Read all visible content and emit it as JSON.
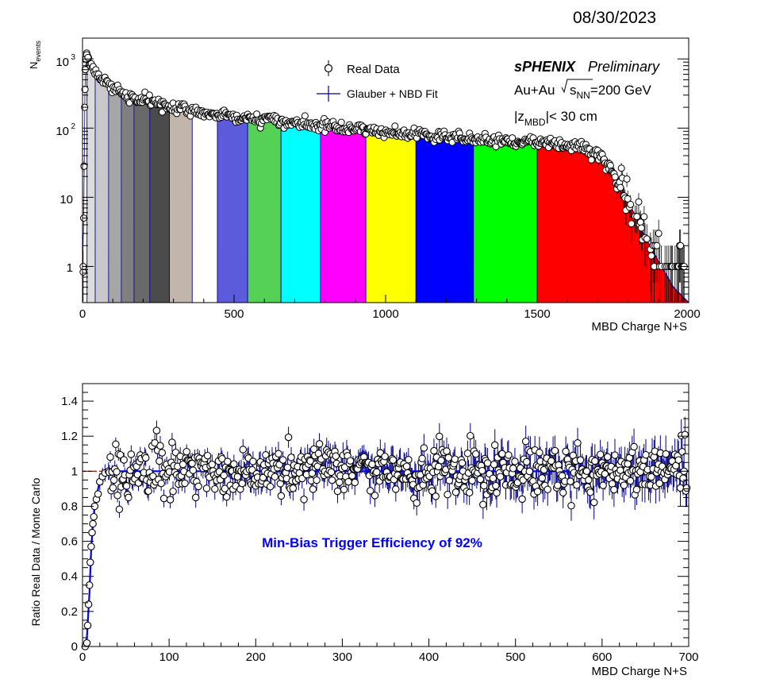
{
  "date": "08/30/2023",
  "charts": [
    {
      "type": "histogram",
      "xlabel": "MBD Charge N+S",
      "ylabel": "N",
      "ylabel_sub": "events",
      "x_ticks": [
        "0",
        "500",
        "1000",
        "1500",
        "2000"
      ],
      "y_ticks": [
        "1",
        "10",
        "10",
        "10"
      ],
      "y_tick_exponents": [
        "",
        "",
        "2",
        "3"
      ],
      "y_scale": "log",
      "xlim": [
        0,
        2000
      ],
      "ylim": [
        0.3,
        2000
      ],
      "legend": {
        "placement": "top-center",
        "entries": [
          "Real Data",
          "Glauber + NBD Fit"
        ]
      },
      "annotations": {
        "experiment": "sPHENIX",
        "status": "Preliminary",
        "system_prefix": "Au+Au",
        "energy_symbol": "s",
        "energy_subscript": "NN",
        "energy_value": "=200 GeV",
        "vertex_prefix": "|z",
        "vertex_subscript": "MBD",
        "vertex_suffix": "|< 30 cm"
      },
      "centrality_bins": [
        {
          "lo": 0,
          "hi": 15,
          "color": "#ffffff"
        },
        {
          "lo": 15,
          "hi": 42,
          "color": "#dcdcdc"
        },
        {
          "lo": 42,
          "hi": 86,
          "color": "#c8c8c8"
        },
        {
          "lo": 86,
          "hi": 128,
          "color": "#a6a6a6"
        },
        {
          "lo": 128,
          "hi": 170,
          "color": "#7f7f7f"
        },
        {
          "lo": 170,
          "hi": 222,
          "color": "#696969"
        },
        {
          "lo": 222,
          "hi": 287,
          "color": "#4b4b4b"
        },
        {
          "lo": 287,
          "hi": 362,
          "color": "#c2b6ac"
        },
        {
          "lo": 362,
          "hi": 445,
          "color": "#ffffff"
        },
        {
          "lo": 445,
          "hi": 545,
          "color": "#5b5bdc"
        },
        {
          "lo": 545,
          "hi": 655,
          "color": "#55d155"
        },
        {
          "lo": 655,
          "hi": 785,
          "color": "#00ffff"
        },
        {
          "lo": 785,
          "hi": 935,
          "color": "#ff00ff"
        },
        {
          "lo": 935,
          "hi": 1100,
          "color": "#ffff00"
        },
        {
          "lo": 1100,
          "hi": 1290,
          "color": "#0000ff"
        },
        {
          "lo": 1290,
          "hi": 1500,
          "color": "#00ff00"
        },
        {
          "lo": 1500,
          "hi": 2000,
          "color": "#ff0000"
        }
      ],
      "data_points": [
        [
          2,
          1.0
        ],
        [
          4,
          5
        ],
        [
          5,
          28
        ],
        [
          7,
          200
        ],
        [
          9,
          700
        ],
        [
          11,
          1000
        ],
        [
          14,
          1150
        ],
        [
          18,
          1050
        ],
        [
          25,
          850
        ],
        [
          35,
          700
        ],
        [
          50,
          560
        ],
        [
          70,
          460
        ],
        [
          100,
          380
        ],
        [
          130,
          330
        ],
        [
          160,
          290
        ],
        [
          200,
          250
        ],
        [
          250,
          220
        ],
        [
          300,
          195
        ],
        [
          350,
          180
        ],
        [
          400,
          165
        ],
        [
          450,
          155
        ],
        [
          500,
          145
        ],
        [
          550,
          140
        ],
        [
          600,
          132
        ],
        [
          650,
          125
        ],
        [
          700,
          120
        ],
        [
          750,
          115
        ],
        [
          800,
          108
        ],
        [
          850,
          103
        ],
        [
          900,
          97
        ],
        [
          950,
          92
        ],
        [
          1000,
          88
        ],
        [
          1050,
          85
        ],
        [
          1100,
          82
        ],
        [
          1150,
          78
        ],
        [
          1200,
          75
        ],
        [
          1250,
          72
        ],
        [
          1300,
          70
        ],
        [
          1350,
          68
        ],
        [
          1400,
          66
        ],
        [
          1450,
          64
        ],
        [
          1500,
          62
        ],
        [
          1550,
          60
        ],
        [
          1600,
          57
        ],
        [
          1650,
          52
        ],
        [
          1700,
          40
        ],
        [
          1730,
          30
        ],
        [
          1760,
          20
        ],
        [
          1780,
          14
        ],
        [
          1800,
          9
        ],
        [
          1820,
          6
        ],
        [
          1840,
          4
        ],
        [
          1860,
          2.5
        ],
        [
          1880,
          1.6
        ],
        [
          1900,
          1.2
        ],
        [
          1920,
          1
        ],
        [
          1950,
          1
        ],
        [
          1980,
          1
        ]
      ],
      "fit_points": [
        [
          15,
          1000
        ],
        [
          25,
          850
        ],
        [
          50,
          560
        ],
        [
          100,
          380
        ],
        [
          200,
          250
        ],
        [
          300,
          195
        ],
        [
          400,
          165
        ],
        [
          500,
          145
        ],
        [
          600,
          132
        ],
        [
          700,
          120
        ],
        [
          800,
          108
        ],
        [
          900,
          97
        ],
        [
          1000,
          88
        ],
        [
          1100,
          82
        ],
        [
          1200,
          75
        ],
        [
          1300,
          70
        ],
        [
          1400,
          66
        ],
        [
          1500,
          62
        ],
        [
          1600,
          57
        ],
        [
          1650,
          52
        ],
        [
          1700,
          40
        ],
        [
          1750,
          22
        ],
        [
          1800,
          9
        ],
        [
          1850,
          3
        ],
        [
          1900,
          1.2
        ],
        [
          1950,
          0.5
        ],
        [
          2000,
          0.3
        ]
      ]
    },
    {
      "type": "scatter",
      "xlabel": "MBD Charge N+S",
      "ylabel": "Ratio Real Data / Monte Carlo",
      "x_ticks": [
        "0",
        "100",
        "200",
        "300",
        "400",
        "500",
        "600",
        "700"
      ],
      "y_ticks": [
        "0",
        "0.2",
        "0.4",
        "0.6",
        "0.8",
        "1",
        "1.2",
        "1.4"
      ],
      "xlim": [
        0,
        700
      ],
      "ylim": [
        0,
        1.5
      ],
      "annotation": "Min-Bias Trigger Efficiency of 92%",
      "reference_line": 1.0,
      "turn_on_points": [
        [
          3,
          0.0
        ],
        [
          5,
          0.02
        ],
        [
          6,
          0.12
        ],
        [
          7,
          0.24
        ],
        [
          8,
          0.35
        ],
        [
          9,
          0.48
        ],
        [
          10,
          0.57
        ],
        [
          11,
          0.65
        ],
        [
          12,
          0.7
        ],
        [
          13,
          0.74
        ],
        [
          14,
          0.8
        ],
        [
          16,
          0.84
        ],
        [
          18,
          0.87
        ],
        [
          20,
          0.94
        ],
        [
          23,
          0.97
        ],
        [
          26,
          0.99
        ],
        [
          30,
          1.0
        ]
      ],
      "fit_curve": [
        [
          2,
          0.0
        ],
        [
          5,
          0.05
        ],
        [
          8,
          0.3
        ],
        [
          10,
          0.55
        ],
        [
          12,
          0.7
        ],
        [
          14,
          0.8
        ],
        [
          17,
          0.88
        ],
        [
          20,
          0.94
        ],
        [
          24,
          0.98
        ],
        [
          30,
          1.0
        ],
        [
          700,
          1.0
        ]
      ],
      "scatter_seed": 20230830
    }
  ]
}
